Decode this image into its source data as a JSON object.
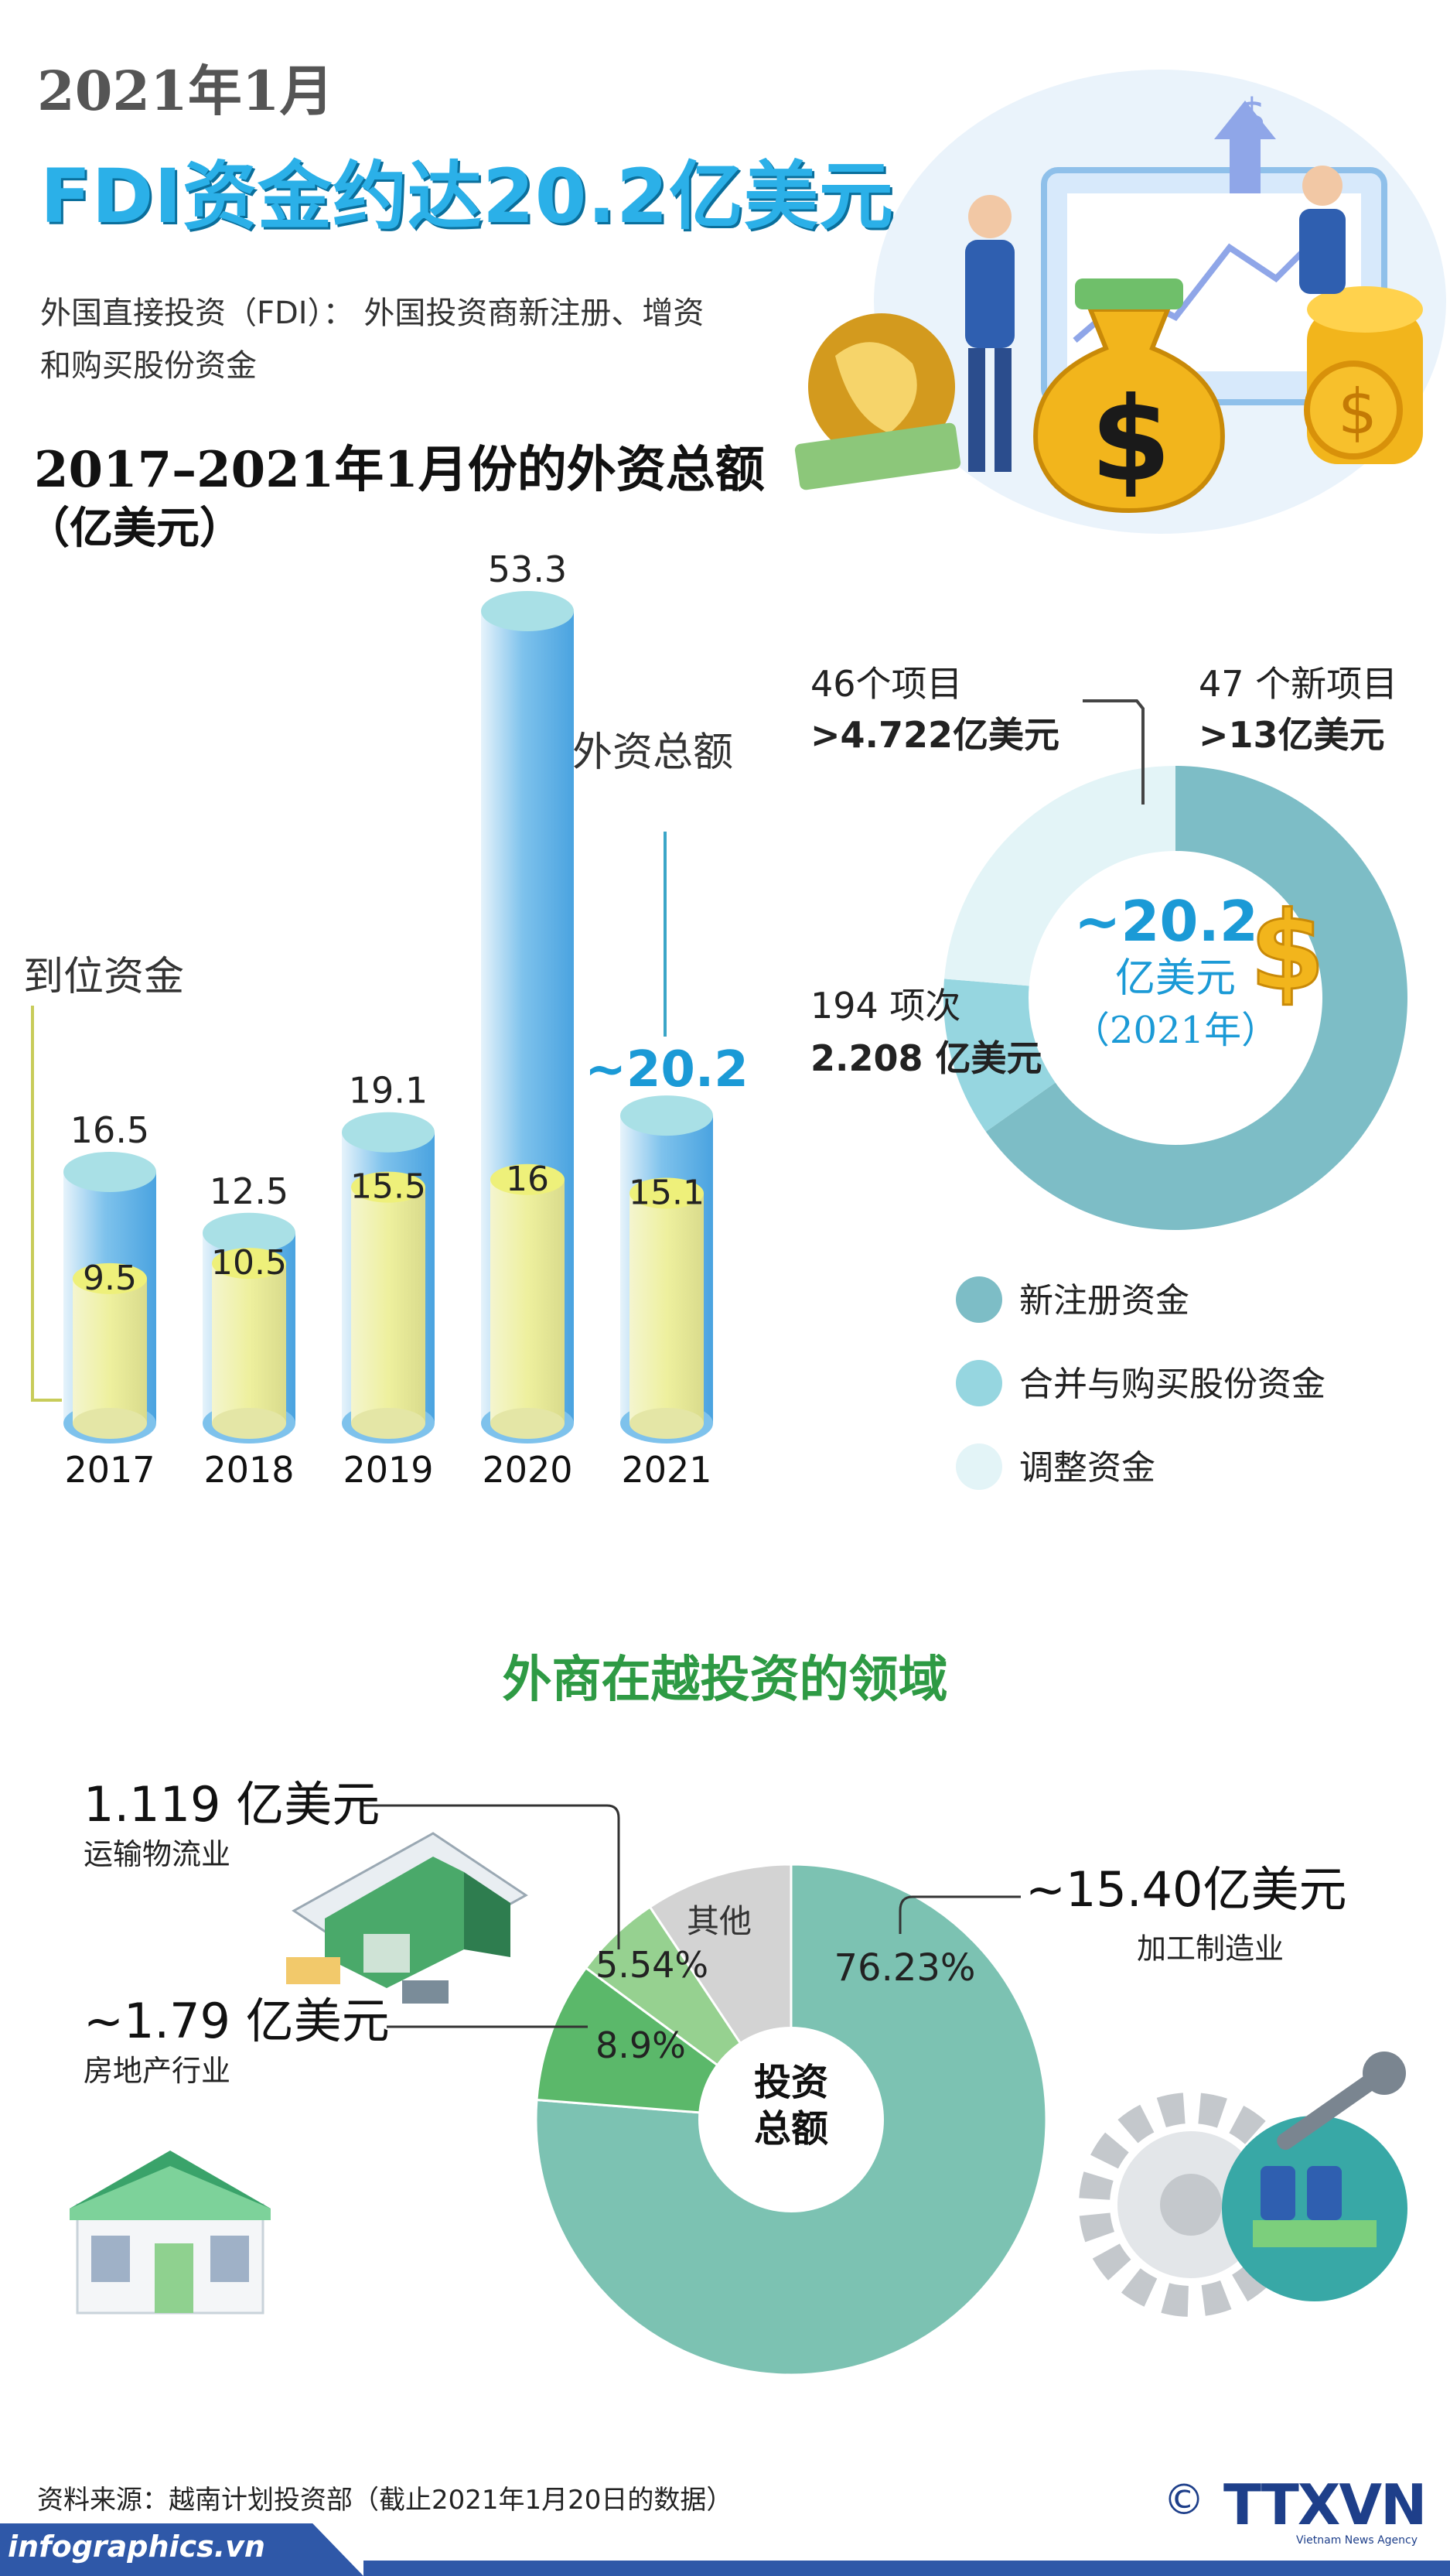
{
  "header": {
    "date": "2021年1月",
    "headline": "FDI资金约达20.2亿美元",
    "definition_line1": "外国直接投资（FDI）： 外国投资商新注册、增资",
    "definition_line2": "和购买股份资金"
  },
  "bar_section": {
    "title": "2017–2021年1月份的外资总额",
    "unit": "（亿美元）",
    "label_total": "外资总额",
    "label_disbursed": "到位资金"
  },
  "donut_section": {
    "center_value": "~20.2",
    "center_unit": "亿美元",
    "center_year": "（2021年）",
    "callout_adjust_line1": "46个项目",
    "callout_adjust_line2": ">4.722亿美元",
    "callout_new_line1": "47 个新项目",
    "callout_new_line2": ">13亿美元",
    "callout_merge_line1": "194 项次",
    "callout_merge_line2": "2.208 亿美元",
    "legend": [
      "新注册资金",
      "合并与购买股份资金",
      "调整资金"
    ],
    "colors": [
      "#7dbdc6",
      "#96d6e0",
      "#e3f4f7"
    ]
  },
  "sector_section": {
    "title": "外商在越投资的领域",
    "center_line1": "投资",
    "center_line2": "总额",
    "transport_value": "1.119 亿美元",
    "transport_name": "运输物流业",
    "realestate_value": "~1.79 亿美元",
    "realestate_name": "房地产行业",
    "manufacturing_value": "~15.40亿美元",
    "manufacturing_name": "加工制造业",
    "other_name": "其他",
    "pct_manufacturing": "76.23%",
    "pct_realestate": "8.9%",
    "pct_transport": "5.54%"
  },
  "footer": {
    "source": "资料来源：越南计划投资部（截止2021年1月20日的数据）",
    "site": "infographics.vn",
    "copyright": "©",
    "brand": "TTXVN",
    "brand_sub": "Vietnam News Agency"
  },
  "chart_data": [
    {
      "type": "bar",
      "categories": [
        "2017",
        "2018",
        "2019",
        "2020",
        "2021"
      ],
      "series": [
        {
          "name": "外资总额",
          "values": [
            16.5,
            12.5,
            19.1,
            53.3,
            20.2
          ],
          "labels": [
            "16.5",
            "12.5",
            "19.1",
            "53.3",
            "~20.2"
          ]
        },
        {
          "name": "到位资金",
          "values": [
            9.5,
            10.5,
            15.5,
            16,
            15.1
          ],
          "labels": [
            "9.5",
            "10.5",
            "15.5",
            "16",
            "15.1"
          ]
        }
      ],
      "title": "2017–2021年1月份的外资总额",
      "ylabel": "（亿美元）",
      "ylim": [
        0,
        53.3
      ]
    },
    {
      "type": "pie",
      "labels": [
        "新注册资金",
        "合并与购买股份资金",
        "调整资金"
      ],
      "values": [
        13,
        2.208,
        4.722
      ],
      "colors": [
        "#7dbdc6",
        "#96d6e0",
        "#e3f4f7"
      ]
    },
    {
      "type": "pie",
      "labels": [
        "加工制造业",
        "房地产行业",
        "运输物流业",
        "其他"
      ],
      "values": [
        76.23,
        8.9,
        5.54,
        9.33
      ],
      "colors": [
        "#7cc2b2",
        "#5bb86a",
        "#96d190",
        "#d3d3d3"
      ]
    }
  ]
}
